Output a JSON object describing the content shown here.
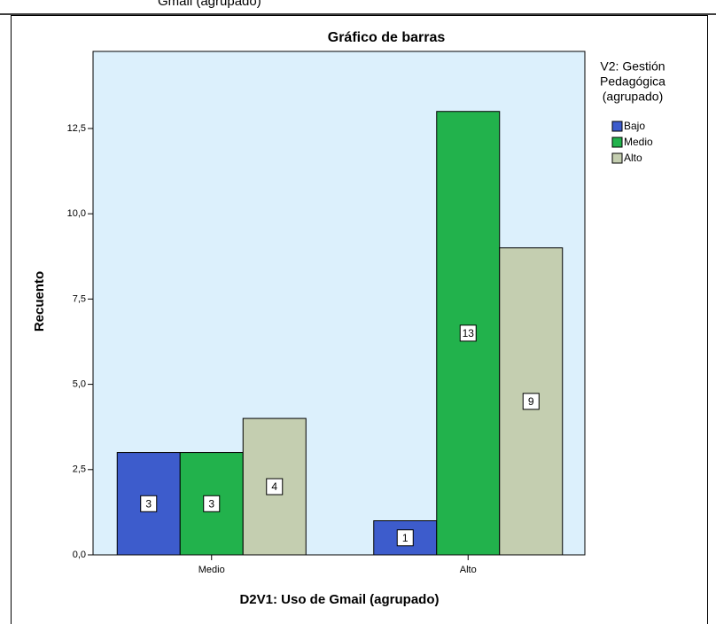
{
  "page_caption": "Gmail (agrupado)",
  "chart_data": {
    "type": "bar",
    "title": "Gráfico de barras",
    "x_label": "D2V1: Uso de Gmail (agrupado)",
    "y_label": "Recuento",
    "legend_title": [
      "V2: Gestión",
      "Pedagógica",
      "(agrupado)"
    ],
    "legend_position": "right",
    "categories": [
      "Medio",
      "Alto"
    ],
    "series": [
      {
        "name": "Bajo",
        "color": "#3d5ccc",
        "values": [
          3,
          1
        ]
      },
      {
        "name": "Medio",
        "color": "#22b24c",
        "values": [
          3,
          13
        ]
      },
      {
        "name": "Alto",
        "color": "#c4ceb0",
        "values": [
          4,
          9
        ]
      }
    ],
    "ylim": [
      0,
      14.76
    ],
    "yticks": [
      {
        "value": 0,
        "label": "0,0"
      },
      {
        "value": 2.5,
        "label": "2,5"
      },
      {
        "value": 5,
        "label": "5,0"
      },
      {
        "value": 7.5,
        "label": "7,5"
      },
      {
        "value": 10,
        "label": "10,0"
      },
      {
        "value": 12.5,
        "label": "12,5"
      }
    ],
    "grid": false
  }
}
